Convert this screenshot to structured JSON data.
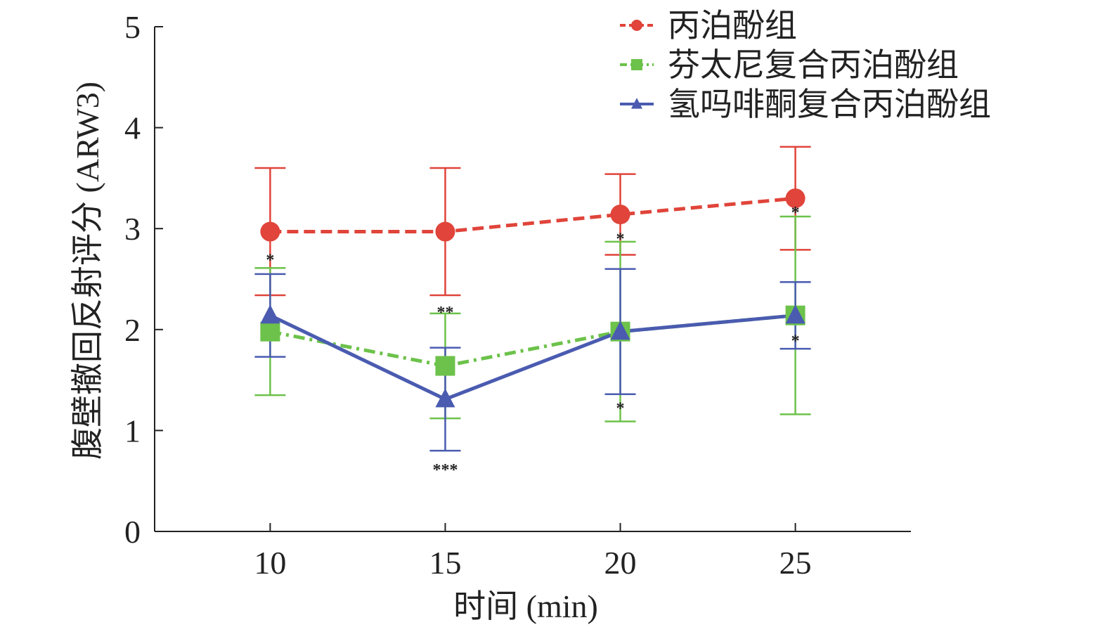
{
  "chart_data": {
    "type": "line",
    "title": "",
    "xlabel": "时间 (min)",
    "ylabel": "腹壁撤回反射评分 (ARW3)",
    "x": [
      10,
      15,
      20,
      25
    ],
    "xlim": [
      6.7,
      28.3
    ],
    "ylim": [
      0,
      5
    ],
    "yticks": [
      0,
      1,
      2,
      3,
      4,
      5
    ],
    "xticks": [
      10,
      15,
      20,
      25
    ],
    "grid": false,
    "legend_position": "top-right",
    "series": [
      {
        "name": "丙泊酚组",
        "color": "#e0443a",
        "marker": "circle",
        "line_style": "dashed",
        "values": [
          2.97,
          2.97,
          3.14,
          3.3
        ],
        "error": [
          0.63,
          0.63,
          0.4,
          0.51
        ]
      },
      {
        "name": "芬太尼复合丙泊酚组",
        "color": "#6cc24a",
        "marker": "square",
        "line_style": "dashdot",
        "values": [
          1.98,
          1.64,
          1.98,
          2.14
        ],
        "error": [
          0.63,
          0.52,
          0.89,
          0.98
        ]
      },
      {
        "name": "氢吗啡酮复合丙泊酚组",
        "color": "#4a5bb0",
        "marker": "triangle",
        "line_style": "solid",
        "values": [
          2.14,
          1.31,
          1.98,
          2.14
        ],
        "error": [
          0.41,
          0.51,
          0.62,
          0.33
        ]
      }
    ],
    "annotations": [
      {
        "x": 10,
        "y": 2.72,
        "text": "*"
      },
      {
        "x": 15,
        "y": 2.2,
        "text": "**"
      },
      {
        "x": 15,
        "y": 0.64,
        "text": "***"
      },
      {
        "x": 20,
        "y": 2.93,
        "text": "*"
      },
      {
        "x": 20,
        "y": 1.25,
        "text": "*"
      },
      {
        "x": 25,
        "y": 3.19,
        "text": "*"
      },
      {
        "x": 25,
        "y": 1.92,
        "text": "*"
      }
    ]
  }
}
